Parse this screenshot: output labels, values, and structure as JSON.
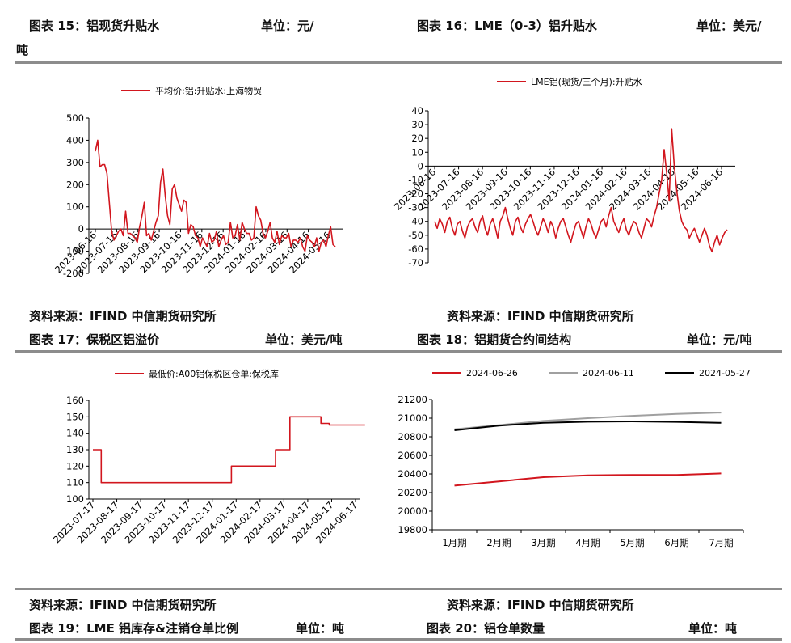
{
  "headers": {
    "c15_title": "图表 15：铝现货升贴水",
    "c15_unit": "单位：元/",
    "c15_unit_wrap": "吨",
    "c16_title": "图表 16：LME（0-3）铝升贴水",
    "c16_unit": "单位：美元/",
    "c17_title": "图表 17：保税区铝溢价",
    "c17_unit": "单位：美元/吨",
    "c18_title": "图表 18：铝期货合约间结构",
    "c18_unit": "单位：元/吨",
    "c19_title": "图表 19：LME 铝库存&注销仓单比例",
    "c19_unit": "单位：吨",
    "c20_title": "图表 20：铝仓单数量",
    "c20_unit": "单位：吨"
  },
  "sources": {
    "s1": "资料来源：IFIND 中信期货研究所",
    "s2": "资料来源：IFIND 中信期货研究所",
    "s3": "资料来源：IFIND 中信期货研究所",
    "s4": "资料来源：IFIND 中信期货研究所"
  },
  "colors": {
    "red": "#d2161e",
    "gray": "#a0a0a0",
    "black": "#000000",
    "rule": "#8c8c8c"
  },
  "chart_data": [
    {
      "id": "c15",
      "type": "line",
      "title": "",
      "ylim": [
        -200,
        500
      ],
      "yticks": [
        -200,
        -100,
        0,
        100,
        200,
        300,
        400,
        500
      ],
      "x_tick_labels": [
        "2023-06-16",
        "2023-07-16",
        "2023-08-16",
        "2023-09-16",
        "2023-10-16",
        "2023-11-16",
        "2023-12-16",
        "2024-01-16",
        "2024-02-16",
        "2024-03-16",
        "2024-04-16",
        "2024-05-16"
      ],
      "series": [
        {
          "name": "平均价:铝:升贴水:上海物贸",
          "color": "#d2161e",
          "values": [
            350,
            400,
            280,
            290,
            290,
            250,
            120,
            -10,
            -50,
            -30,
            -10,
            0,
            -30,
            80,
            -20,
            -20,
            -30,
            -40,
            -60,
            10,
            60,
            120,
            -30,
            -20,
            -50,
            -10,
            30,
            60,
            210,
            270,
            150,
            60,
            20,
            180,
            200,
            140,
            110,
            80,
            130,
            120,
            -20,
            20,
            10,
            -30,
            -40,
            -80,
            -40,
            -60,
            -80,
            -20,
            -60,
            -50,
            -10,
            -80,
            -50,
            -30,
            -70,
            -60,
            30,
            -40,
            -30,
            20,
            -50,
            30,
            0,
            -20,
            -20,
            -50,
            -40,
            100,
            60,
            40,
            -20,
            -40,
            -10,
            30,
            -40,
            -60,
            -10,
            -70,
            -30,
            -40,
            -40,
            -20,
            -80,
            -50,
            -50,
            -60,
            -40,
            -80,
            -100,
            -30,
            -50,
            -60,
            -80,
            -40,
            -100,
            -60,
            -50,
            -80,
            -30,
            10,
            -70,
            -80
          ]
        }
      ]
    },
    {
      "id": "c16",
      "type": "line",
      "title": "",
      "ylim": [
        -70,
        40
      ],
      "yticks": [
        -70,
        -60,
        -50,
        -40,
        -30,
        -20,
        -10,
        0,
        10,
        20,
        30,
        40
      ],
      "x_tick_labels": [
        "2023-06-16",
        "2023-07-16",
        "2023-08-16",
        "2023-09-16",
        "2023-10-16",
        "2023-11-16",
        "2023-12-16",
        "2024-01-16",
        "2024-02-16",
        "2024-03-16",
        "2024-04-16",
        "2024-05-16",
        "2024-06-16"
      ],
      "series": [
        {
          "name": "LME铝(现货/三个月):升贴水",
          "color": "#d2161e",
          "values": [
            -40,
            -45,
            -38,
            -42,
            -48,
            -40,
            -37,
            -45,
            -50,
            -42,
            -40,
            -47,
            -52,
            -44,
            -40,
            -38,
            -44,
            -48,
            -40,
            -36,
            -45,
            -50,
            -42,
            -38,
            -44,
            -52,
            -40,
            -36,
            -30,
            -38,
            -45,
            -50,
            -40,
            -37,
            -44,
            -48,
            -42,
            -38,
            -35,
            -40,
            -46,
            -50,
            -44,
            -38,
            -42,
            -48,
            -40,
            -44,
            -52,
            -45,
            -40,
            -38,
            -44,
            -50,
            -55,
            -48,
            -42,
            -40,
            -46,
            -52,
            -44,
            -38,
            -42,
            -48,
            -52,
            -46,
            -40,
            -38,
            -44,
            -36,
            -30,
            -40,
            -44,
            -48,
            -42,
            -38,
            -46,
            -50,
            -44,
            -40,
            -42,
            -48,
            -52,
            -45,
            -38,
            -40,
            -44,
            -36,
            -30,
            -20,
            -10,
            12,
            -5,
            -25,
            27,
            0,
            -18,
            -32,
            -40,
            -44,
            -46,
            -52,
            -48,
            -45,
            -50,
            -55,
            -50,
            -45,
            -50,
            -58,
            -62,
            -55,
            -50,
            -57,
            -52,
            -48,
            -46
          ]
        }
      ]
    },
    {
      "id": "c17",
      "type": "line",
      "title": "",
      "ylim": [
        100,
        160
      ],
      "yticks": [
        100,
        110,
        120,
        130,
        140,
        150,
        160
      ],
      "x_tick_labels": [
        "2023-07-17",
        "2023-08-17",
        "2023-09-17",
        "2023-10-17",
        "2023-11-17",
        "2023-12-17",
        "2024-01-17",
        "2024-02-17",
        "2024-03-17",
        "2024-04-17",
        "2024-05-17",
        "2024-06-17"
      ],
      "series": [
        {
          "name": "最低价:A00铝保税区仓单:保税库",
          "color": "#d2161e",
          "points": [
            [
              0.0,
              130
            ],
            [
              0.35,
              130
            ],
            [
              0.35,
              110
            ],
            [
              5.8,
              110
            ],
            [
              5.8,
              120
            ],
            [
              7.65,
              120
            ],
            [
              7.65,
              130
            ],
            [
              8.25,
              130
            ],
            [
              8.25,
              150
            ],
            [
              9.55,
              150
            ],
            [
              9.55,
              146
            ],
            [
              9.9,
              146
            ],
            [
              9.9,
              145
            ],
            [
              11.4,
              145
            ]
          ]
        }
      ]
    },
    {
      "id": "c18",
      "type": "line",
      "title": "",
      "ylim": [
        19800,
        21200
      ],
      "yticks": [
        19800,
        20000,
        20200,
        20400,
        20600,
        20800,
        21000,
        21200
      ],
      "categories": [
        "1月期",
        "2月期",
        "3月期",
        "4月期",
        "5月期",
        "6月期",
        "7月期"
      ],
      "series": [
        {
          "name": "2024-06-26",
          "color": "#d2161e",
          "values": [
            20275,
            20320,
            20365,
            20385,
            20390,
            20390,
            20405
          ]
        },
        {
          "name": "2024-06-11",
          "color": "#a0a0a0",
          "values": [
            20880,
            20925,
            20970,
            21000,
            21025,
            21045,
            21060
          ]
        },
        {
          "name": "2024-05-27",
          "color": "#000000",
          "values": [
            20870,
            20920,
            20950,
            20962,
            20965,
            20960,
            20950
          ]
        }
      ]
    }
  ]
}
